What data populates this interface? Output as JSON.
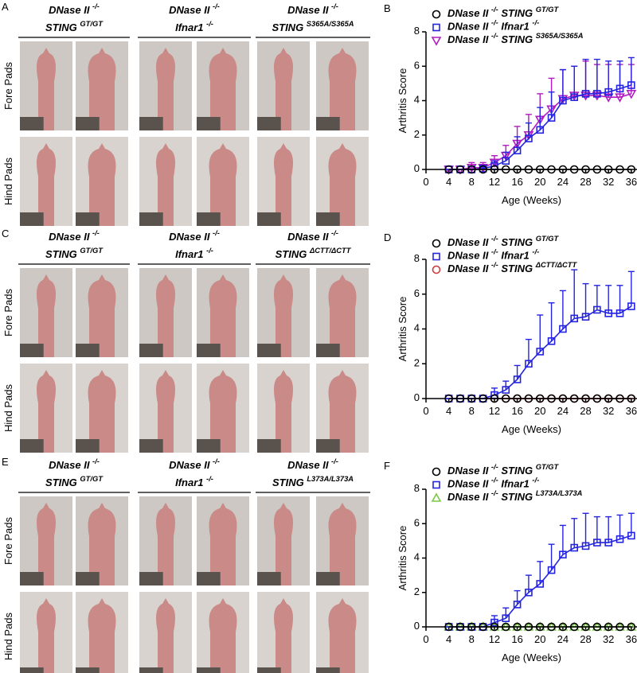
{
  "photo_panels": [
    {
      "label": "A",
      "groups": [
        {
          "line1": "DNase II -/-",
          "line2": "STING GT/GT"
        },
        {
          "line1": "DNase II -/-",
          "line2": "Ifnar1 -/-"
        },
        {
          "line1": "DNase II -/-",
          "line2": "STING S365A/S365A"
        }
      ],
      "rows": [
        "Fore Pads",
        "Hind Pads"
      ]
    },
    {
      "label": "C",
      "groups": [
        {
          "line1": "DNase II -/-",
          "line2": "STING GT/GT"
        },
        {
          "line1": "DNase II -/-",
          "line2": "Ifnar1 -/-"
        },
        {
          "line1": "DNase II -/-",
          "line2": "STING ΔCTT/ΔCTT"
        }
      ],
      "rows": [
        "Fore Pads",
        "Hind Pads"
      ]
    },
    {
      "label": "E",
      "groups": [
        {
          "line1": "DNase II -/-",
          "line2": "STING GT/GT"
        },
        {
          "line1": "DNase II -/-",
          "line2": "Ifnar1 -/-"
        },
        {
          "line1": "DNase II -/-",
          "line2": "STING L373A/L373A"
        }
      ],
      "rows": [
        "Fore Pads",
        "Hind Pads"
      ]
    }
  ],
  "chart_data": [
    {
      "type": "line",
      "label": "B",
      "x_label": "Age (Weeks)",
      "y_label": "Arthritis Score",
      "x": [
        4,
        6,
        8,
        10,
        12,
        14,
        16,
        18,
        20,
        22,
        24,
        26,
        28,
        30,
        32,
        34,
        36
      ],
      "xlim": [
        0,
        37
      ],
      "xticks": [
        0,
        4,
        8,
        12,
        16,
        20,
        24,
        28,
        32,
        36
      ],
      "ylim": [
        0,
        8
      ],
      "yticks": [
        0,
        2,
        4,
        6,
        8
      ],
      "series": [
        {
          "name": "DNase II -/- STING GT/GT",
          "color": "#000000",
          "marker": "circle",
          "values": [
            0,
            0,
            0,
            0,
            0,
            0,
            0,
            0,
            0,
            0,
            0,
            0,
            0,
            0,
            0,
            0,
            0
          ]
        },
        {
          "name": "DNase II -/- Ifnar1 -/-",
          "color": "#2424e0",
          "marker": "square",
          "values": [
            0,
            0,
            0,
            0.05,
            0.2,
            0.5,
            1.1,
            1.8,
            2.3,
            3.0,
            4.0,
            4.2,
            4.4,
            4.4,
            4.5,
            4.7,
            4.9
          ],
          "errors": [
            0,
            0,
            0,
            0.1,
            0.3,
            0.5,
            0.8,
            0.9,
            1.3,
            1.5,
            1.8,
            1.8,
            2.0,
            2.0,
            1.8,
            1.6,
            1.6
          ]
        },
        {
          "name": "DNase II -/- STING S365A/S365A",
          "color": "#b01cc0",
          "marker": "triangle-down",
          "values": [
            0,
            0,
            0.1,
            0.1,
            0.4,
            0.8,
            1.5,
            2.0,
            2.9,
            3.5,
            4.1,
            4.3,
            4.3,
            4.3,
            4.2,
            4.2,
            4.4
          ],
          "errors": [
            0,
            0,
            0.3,
            0.3,
            0.4,
            0.6,
            1.0,
            1.2,
            1.5,
            1.8,
            1.7,
            1.7,
            2.0,
            1.8,
            1.9,
            1.9,
            1.7
          ]
        }
      ]
    },
    {
      "type": "line",
      "label": "D",
      "x_label": "Age (Weeks)",
      "y_label": "Arthritis Score",
      "x": [
        4,
        6,
        8,
        10,
        12,
        14,
        16,
        18,
        20,
        22,
        24,
        26,
        28,
        30,
        32,
        34,
        36
      ],
      "xlim": [
        0,
        37
      ],
      "xticks": [
        0,
        4,
        8,
        12,
        16,
        20,
        24,
        28,
        32,
        36
      ],
      "ylim": [
        0,
        8
      ],
      "yticks": [
        0,
        2,
        4,
        6,
        8
      ],
      "series": [
        {
          "name": "DNase II -/- STING GT/GT",
          "color": "#000000",
          "marker": "circle",
          "values": [
            0,
            0,
            0,
            0,
            0,
            0,
            0,
            0,
            0,
            0,
            0,
            0,
            0,
            0,
            0,
            0,
            0
          ]
        },
        {
          "name": "DNase II -/- Ifnar1 -/-",
          "color": "#2424e0",
          "marker": "square",
          "values": [
            0,
            0,
            0,
            0,
            0.2,
            0.5,
            1.1,
            2.0,
            2.7,
            3.3,
            4.0,
            4.6,
            4.7,
            5.1,
            4.9,
            4.9,
            5.3
          ],
          "errors": [
            0,
            0,
            0,
            0,
            0.4,
            0.5,
            0.8,
            1.4,
            2.1,
            2.2,
            2.2,
            2.8,
            1.9,
            1.4,
            1.6,
            1.6,
            2.0
          ]
        },
        {
          "name": "DNase II -/- STING ΔCTT/ΔCTT",
          "color": "#d23a3a",
          "marker": "circle",
          "values": [
            0,
            0,
            0,
            0,
            0,
            0,
            0,
            0,
            0,
            0,
            0,
            0,
            0,
            0,
            0,
            0,
            0
          ]
        }
      ]
    },
    {
      "type": "line",
      "label": "F",
      "x_label": "Age (Weeks)",
      "y_label": "Arthritis Score",
      "x": [
        4,
        6,
        8,
        10,
        12,
        14,
        16,
        18,
        20,
        22,
        24,
        26,
        28,
        30,
        32,
        34,
        36
      ],
      "xlim": [
        0,
        37
      ],
      "xticks": [
        0,
        4,
        8,
        12,
        16,
        20,
        24,
        28,
        32,
        36
      ],
      "ylim": [
        0,
        8
      ],
      "yticks": [
        0,
        2,
        4,
        6,
        8
      ],
      "series": [
        {
          "name": "DNase II -/- STING GT/GT",
          "color": "#000000",
          "marker": "circle",
          "values": [
            0,
            0,
            0,
            0,
            0,
            0,
            0,
            0,
            0,
            0,
            0,
            0,
            0,
            0,
            0,
            0,
            0
          ]
        },
        {
          "name": "DNase II -/- Ifnar1 -/-",
          "color": "#2424e0",
          "marker": "square",
          "values": [
            0,
            0,
            0,
            0,
            0.25,
            0.5,
            1.3,
            2.0,
            2.5,
            3.3,
            4.2,
            4.6,
            4.7,
            4.9,
            4.9,
            5.1,
            5.3
          ],
          "errors": [
            0,
            0,
            0,
            0,
            0.4,
            0.6,
            0.8,
            1.0,
            1.3,
            1.5,
            1.7,
            1.7,
            1.9,
            1.5,
            1.5,
            1.4,
            1.3
          ]
        },
        {
          "name": "DNase II -/- STING L373A/L373A",
          "color": "#7ac943",
          "marker": "triangle-up",
          "values": [
            0,
            0,
            0,
            0,
            0,
            0,
            0,
            0,
            0,
            0,
            0,
            0,
            0,
            0,
            0,
            0,
            0
          ]
        }
      ]
    }
  ]
}
